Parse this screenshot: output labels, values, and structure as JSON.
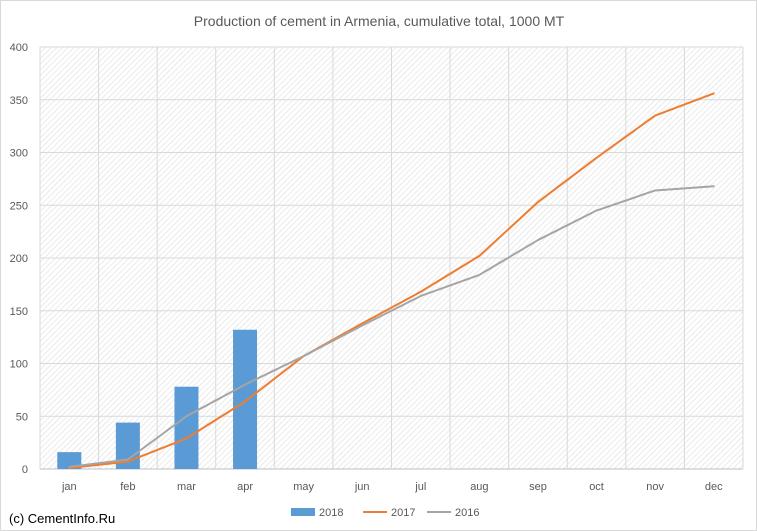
{
  "chart_data": {
    "type": "bar+line",
    "title": "Production of cement in Armenia, cumulative total, 1000 MT",
    "categories": [
      "jan",
      "feb",
      "mar",
      "apr",
      "may",
      "jun",
      "jul",
      "aug",
      "sep",
      "oct",
      "nov",
      "dec"
    ],
    "ylim": [
      0,
      400
    ],
    "yticks": [
      "0",
      "50",
      "100",
      "150",
      "200",
      "250",
      "300",
      "350",
      "400"
    ],
    "grid": true,
    "legend_position": "bottom",
    "series": [
      {
        "name": "2018",
        "type": "bar",
        "color": "#5b9bd5",
        "values": [
          16,
          44,
          78,
          132,
          null,
          null,
          null,
          null,
          null,
          null,
          null,
          null
        ]
      },
      {
        "name": "2017",
        "type": "line",
        "color": "#ed7d31",
        "values": [
          1,
          7,
          29,
          64,
          107,
          138,
          168,
          202,
          253,
          295,
          335,
          356
        ]
      },
      {
        "name": "2016",
        "type": "line",
        "color": "#a5a5a5",
        "values": [
          2,
          9,
          50,
          80,
          107,
          136,
          164,
          184,
          217,
          245,
          264,
          268
        ]
      }
    ]
  },
  "footer": {
    "copyright": "(c) CementInfo.Ru"
  }
}
